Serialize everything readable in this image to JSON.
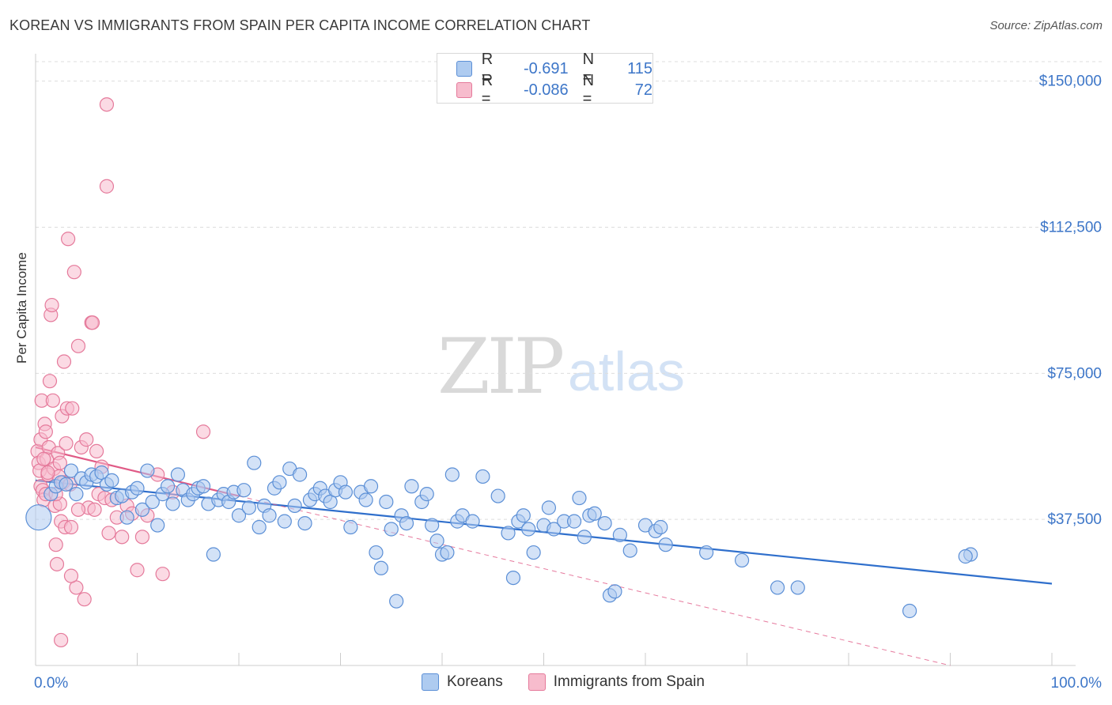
{
  "title": "KOREAN VS IMMIGRANTS FROM SPAIN PER CAPITA INCOME CORRELATION CHART",
  "source": "Source: ZipAtlas.com",
  "watermark": {
    "zip": "ZIP",
    "atlas": "atlas"
  },
  "legend": {
    "r_label": "R =",
    "n_label": "N =",
    "rows": [
      {
        "r": "-0.691",
        "n": "115"
      },
      {
        "r": "-0.086",
        "n": "72"
      }
    ]
  },
  "bottom_legend": [
    "Koreans",
    "Immigrants from Spain"
  ],
  "colors": {
    "koreans_fill": "#aecbf0",
    "koreans_stroke": "#5b8fd6",
    "koreans_line": "#2f6fcc",
    "spain_fill": "#f7bccd",
    "spain_stroke": "#e57a9b",
    "spain_line": "#e05a86",
    "axis_text": "#3d76c8",
    "grid": "#dddddd"
  },
  "chart_data": {
    "type": "scatter",
    "title": "KOREAN VS IMMIGRANTS FROM SPAIN PER CAPITA INCOME CORRELATION CHART",
    "xlabel": "",
    "ylabel": "Per Capita Income",
    "xlim": [
      0,
      100
    ],
    "ylim": [
      0,
      155000
    ],
    "x_tick_labels": [
      "0.0%",
      "100.0%"
    ],
    "y_ticks": [
      37500,
      75000,
      112500,
      150000
    ],
    "y_tick_labels": [
      "$37,500",
      "$75,000",
      "$112,500",
      "$150,000"
    ],
    "series": [
      {
        "name": "Koreans",
        "r": -0.691,
        "n": 115,
        "trend": {
          "x": [
            0,
            100
          ],
          "y": [
            47500,
            21000
          ]
        },
        "points": [
          [
            0.3,
            38000
          ],
          [
            1.5,
            44000
          ],
          [
            2.0,
            46000
          ],
          [
            2.5,
            47000
          ],
          [
            3.0,
            46500
          ],
          [
            3.5,
            50000
          ],
          [
            4.0,
            44000
          ],
          [
            4.5,
            48000
          ],
          [
            5.0,
            47000
          ],
          [
            5.5,
            49000
          ],
          [
            6.0,
            48500
          ],
          [
            6.5,
            49500
          ],
          [
            7.0,
            46500
          ],
          [
            7.5,
            47500
          ],
          [
            8.0,
            43000
          ],
          [
            8.5,
            43500
          ],
          [
            9.0,
            38000
          ],
          [
            9.5,
            44500
          ],
          [
            10.0,
            45500
          ],
          [
            10.5,
            40000
          ],
          [
            11.0,
            50000
          ],
          [
            11.5,
            42000
          ],
          [
            12.0,
            36000
          ],
          [
            12.5,
            44000
          ],
          [
            13.0,
            46000
          ],
          [
            13.5,
            41500
          ],
          [
            14.0,
            49000
          ],
          [
            14.5,
            45000
          ],
          [
            15.0,
            42500
          ],
          [
            15.5,
            44000
          ],
          [
            16.0,
            45500
          ],
          [
            16.5,
            46000
          ],
          [
            17.0,
            41500
          ],
          [
            17.5,
            28500
          ],
          [
            18.0,
            42500
          ],
          [
            18.5,
            44000
          ],
          [
            19.0,
            42000
          ],
          [
            19.5,
            44500
          ],
          [
            20.0,
            38500
          ],
          [
            20.5,
            45000
          ],
          [
            21.0,
            40500
          ],
          [
            21.5,
            52000
          ],
          [
            22.0,
            35500
          ],
          [
            22.5,
            41000
          ],
          [
            23.0,
            38500
          ],
          [
            23.5,
            45500
          ],
          [
            24.0,
            47000
          ],
          [
            24.5,
            37000
          ],
          [
            25.0,
            50500
          ],
          [
            25.5,
            41000
          ],
          [
            26.0,
            49000
          ],
          [
            26.5,
            36500
          ],
          [
            27.0,
            42500
          ],
          [
            27.5,
            44000
          ],
          [
            28.0,
            45500
          ],
          [
            28.5,
            43500
          ],
          [
            29.0,
            42000
          ],
          [
            29.5,
            45000
          ],
          [
            30.0,
            47000
          ],
          [
            30.5,
            44500
          ],
          [
            31.0,
            35500
          ],
          [
            32.0,
            44500
          ],
          [
            32.5,
            42500
          ],
          [
            33.0,
            46000
          ],
          [
            33.5,
            29000
          ],
          [
            34.0,
            25000
          ],
          [
            34.5,
            42000
          ],
          [
            35.0,
            35000
          ],
          [
            35.5,
            16500
          ],
          [
            36.0,
            38500
          ],
          [
            36.5,
            36500
          ],
          [
            37.0,
            46000
          ],
          [
            38.0,
            42000
          ],
          [
            38.5,
            44000
          ],
          [
            39.0,
            36000
          ],
          [
            39.5,
            32000
          ],
          [
            40.0,
            28500
          ],
          [
            40.5,
            29000
          ],
          [
            41.0,
            49000
          ],
          [
            41.5,
            37000
          ],
          [
            42.0,
            38500
          ],
          [
            43.0,
            37000
          ],
          [
            44.0,
            48500
          ],
          [
            45.5,
            43500
          ],
          [
            46.5,
            34000
          ],
          [
            47.0,
            22500
          ],
          [
            47.5,
            37000
          ],
          [
            48.0,
            38500
          ],
          [
            48.5,
            35000
          ],
          [
            49.0,
            29000
          ],
          [
            50.0,
            36000
          ],
          [
            50.5,
            40500
          ],
          [
            51.0,
            35000
          ],
          [
            52.0,
            37000
          ],
          [
            53.0,
            37000
          ],
          [
            53.5,
            43000
          ],
          [
            54.0,
            33000
          ],
          [
            54.5,
            38500
          ],
          [
            55.0,
            39000
          ],
          [
            56.0,
            36500
          ],
          [
            56.5,
            18000
          ],
          [
            57.0,
            19000
          ],
          [
            57.5,
            33500
          ],
          [
            58.5,
            29500
          ],
          [
            60.0,
            36000
          ],
          [
            61.0,
            34500
          ],
          [
            61.5,
            35500
          ],
          [
            62.0,
            31000
          ],
          [
            66.0,
            29000
          ],
          [
            69.5,
            27000
          ],
          [
            73.0,
            20000
          ],
          [
            75.0,
            20000
          ],
          [
            86.0,
            14000
          ],
          [
            92.0,
            28500
          ],
          [
            91.5,
            28000
          ]
        ]
      },
      {
        "name": "Immigrants from Spain",
        "r": -0.086,
        "n": 72,
        "trend_solid": {
          "x": [
            0,
            20
          ],
          "y": [
            56000,
            43500
          ]
        },
        "trend_dashed": {
          "x": [
            20,
            90
          ],
          "y": [
            43500,
            0
          ]
        },
        "points": [
          [
            0.2,
            55000
          ],
          [
            0.3,
            52000
          ],
          [
            0.4,
            50000
          ],
          [
            0.5,
            46000
          ],
          [
            0.5,
            58000
          ],
          [
            0.6,
            68000
          ],
          [
            0.7,
            45000
          ],
          [
            0.8,
            42500
          ],
          [
            0.9,
            62000
          ],
          [
            1.0,
            60000
          ],
          [
            1.1,
            53000
          ],
          [
            1.2,
            49000
          ],
          [
            1.3,
            56000
          ],
          [
            1.4,
            73000
          ],
          [
            1.5,
            90000
          ],
          [
            1.6,
            92500
          ],
          [
            1.7,
            68000
          ],
          [
            1.8,
            50500
          ],
          [
            1.9,
            41000
          ],
          [
            2.0,
            31000
          ],
          [
            2.1,
            26000
          ],
          [
            2.2,
            54500
          ],
          [
            2.3,
            48500
          ],
          [
            2.4,
            41500
          ],
          [
            2.5,
            37000
          ],
          [
            2.6,
            64000
          ],
          [
            2.7,
            47000
          ],
          [
            2.8,
            78000
          ],
          [
            2.9,
            35500
          ],
          [
            3.0,
            57000
          ],
          [
            3.1,
            66000
          ],
          [
            3.2,
            109500
          ],
          [
            3.4,
            46500
          ],
          [
            3.5,
            35500
          ],
          [
            3.6,
            66000
          ],
          [
            3.8,
            101000
          ],
          [
            4.0,
            20000
          ],
          [
            4.2,
            82000
          ],
          [
            4.5,
            56000
          ],
          [
            4.8,
            17000
          ],
          [
            5.0,
            58000
          ],
          [
            5.2,
            40500
          ],
          [
            5.5,
            88000
          ],
          [
            5.6,
            88000
          ],
          [
            5.8,
            40000
          ],
          [
            6.0,
            55000
          ],
          [
            6.2,
            44000
          ],
          [
            6.5,
            51000
          ],
          [
            6.8,
            43000
          ],
          [
            7.0,
            123000
          ],
          [
            7.2,
            34000
          ],
          [
            7.5,
            42500
          ],
          [
            8.0,
            38000
          ],
          [
            8.5,
            33000
          ],
          [
            9.0,
            41000
          ],
          [
            9.5,
            39000
          ],
          [
            10.0,
            24500
          ],
          [
            10.5,
            33000
          ],
          [
            11.0,
            38500
          ],
          [
            12.0,
            49000
          ],
          [
            12.5,
            23500
          ],
          [
            13.5,
            44500
          ],
          [
            16.5,
            60000
          ],
          [
            7.0,
            144000
          ],
          [
            2.5,
            6500
          ],
          [
            3.5,
            23000
          ],
          [
            1.0,
            44000
          ],
          [
            0.8,
            53000
          ],
          [
            1.2,
            49500
          ],
          [
            2.0,
            44000
          ],
          [
            2.4,
            52000
          ],
          [
            4.2,
            40000
          ]
        ]
      }
    ]
  }
}
